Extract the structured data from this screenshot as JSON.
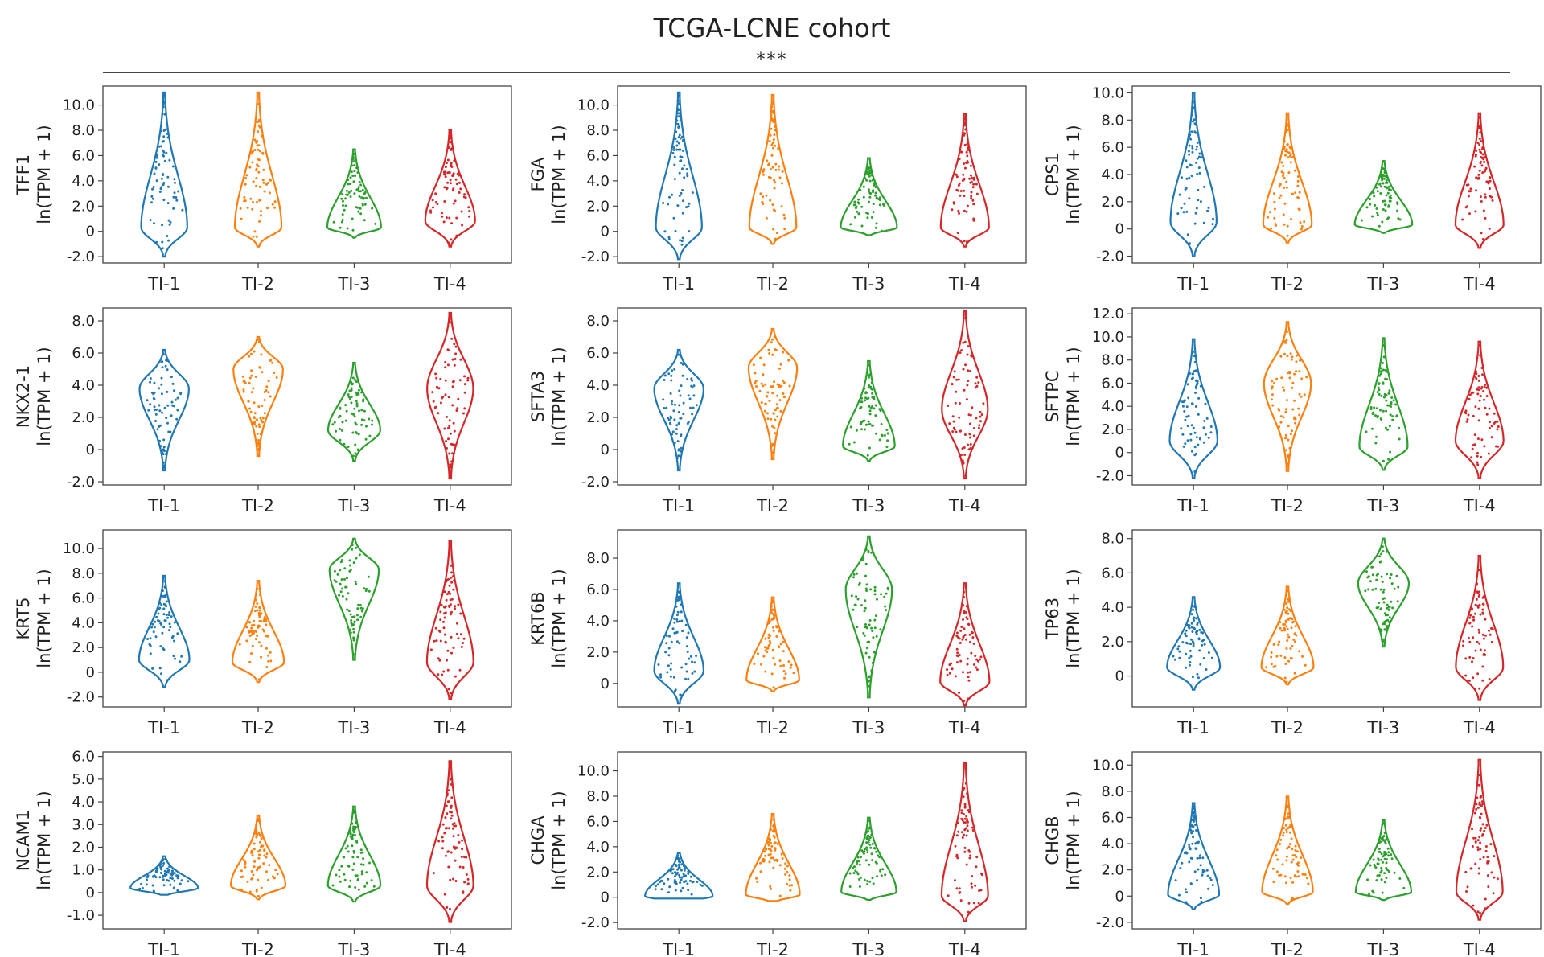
{
  "title": "TCGA-LCNE cohort",
  "significance": "***",
  "colors": {
    "TI-1": "#1f77b4",
    "TI-2": "#ff7f0e",
    "TI-3": "#2ca02c",
    "TI-4": "#d62728"
  },
  "chart_data": [
    {
      "type": "violin",
      "gene": "TFF1",
      "ylabel": "ln(TPM + 1)",
      "categories": [
        "TI-1",
        "TI-2",
        "TI-3",
        "TI-4"
      ],
      "yticks": [
        -2.0,
        0,
        2.0,
        4.0,
        6.0,
        8.0,
        10.0
      ],
      "ylim": [
        -2.5,
        11.5
      ],
      "series": [
        {
          "category": "TI-1",
          "min": -2.0,
          "max": 11.0,
          "mode": 0.3
        },
        {
          "category": "TI-2",
          "min": -1.2,
          "max": 11.0,
          "mode": 0.3
        },
        {
          "category": "TI-3",
          "min": -0.5,
          "max": 6.5,
          "mode": 0.3
        },
        {
          "category": "TI-4",
          "min": -1.2,
          "max": 8.0,
          "mode": 0.8
        }
      ]
    },
    {
      "type": "violin",
      "gene": "FGA",
      "ylabel": "ln(TPM + 1)",
      "categories": [
        "TI-1",
        "TI-2",
        "TI-3",
        "TI-4"
      ],
      "yticks": [
        -2.0,
        0,
        2.0,
        4.0,
        6.0,
        8.0,
        10.0
      ],
      "ylim": [
        -2.5,
        11.5
      ],
      "series": [
        {
          "category": "TI-1",
          "min": -2.2,
          "max": 11.0,
          "mode": 0.3
        },
        {
          "category": "TI-2",
          "min": -1.0,
          "max": 10.8,
          "mode": 0.3
        },
        {
          "category": "TI-3",
          "min": -0.3,
          "max": 5.8,
          "mode": 0.3
        },
        {
          "category": "TI-4",
          "min": -1.2,
          "max": 9.3,
          "mode": 0.3
        }
      ]
    },
    {
      "type": "violin",
      "gene": "CPS1",
      "ylabel": "ln(TPM + 1)",
      "categories": [
        "TI-1",
        "TI-2",
        "TI-3",
        "TI-4"
      ],
      "yticks": [
        -2.0,
        0,
        2.0,
        4.0,
        6.0,
        8.0,
        10.0
      ],
      "ylim": [
        -2.5,
        10.5
      ],
      "series": [
        {
          "category": "TI-1",
          "min": -2.0,
          "max": 10.0,
          "mode": 0.5
        },
        {
          "category": "TI-2",
          "min": -1.0,
          "max": 8.5,
          "mode": 0.3
        },
        {
          "category": "TI-3",
          "min": -0.3,
          "max": 5.0,
          "mode": 0.3
        },
        {
          "category": "TI-4",
          "min": -1.4,
          "max": 8.5,
          "mode": 0.3
        }
      ]
    },
    {
      "type": "violin",
      "gene": "NKX2-1",
      "ylabel": "ln(TPM + 1)",
      "categories": [
        "TI-1",
        "TI-2",
        "TI-3",
        "TI-4"
      ],
      "yticks": [
        -2.0,
        0,
        2.0,
        4.0,
        6.0,
        8.0
      ],
      "ylim": [
        -2.2,
        8.8
      ],
      "series": [
        {
          "category": "TI-1",
          "min": -1.3,
          "max": 6.2,
          "mode": 3.8
        },
        {
          "category": "TI-2",
          "min": -0.4,
          "max": 7.0,
          "mode": 5.0
        },
        {
          "category": "TI-3",
          "min": -0.7,
          "max": 5.4,
          "mode": 1.2
        },
        {
          "category": "TI-4",
          "min": -1.8,
          "max": 8.5,
          "mode": 3.8
        }
      ]
    },
    {
      "type": "violin",
      "gene": "SFTA3",
      "ylabel": "ln(TPM + 1)",
      "categories": [
        "TI-1",
        "TI-2",
        "TI-3",
        "TI-4"
      ],
      "yticks": [
        -2.0,
        0,
        2.0,
        4.0,
        6.0,
        8.0
      ],
      "ylim": [
        -2.2,
        8.8
      ],
      "series": [
        {
          "category": "TI-1",
          "min": -1.3,
          "max": 6.2,
          "mode": 3.8
        },
        {
          "category": "TI-2",
          "min": -0.6,
          "max": 7.5,
          "mode": 5.1
        },
        {
          "category": "TI-3",
          "min": -0.7,
          "max": 5.5,
          "mode": 0.2
        },
        {
          "category": "TI-4",
          "min": -1.8,
          "max": 8.6,
          "mode": 2.5
        }
      ]
    },
    {
      "type": "violin",
      "gene": "SFTPC",
      "ylabel": "ln(TPM + 1)",
      "categories": [
        "TI-1",
        "TI-2",
        "TI-3",
        "TI-4"
      ],
      "yticks": [
        -2.0,
        0,
        2.0,
        4.0,
        6.0,
        8.0,
        10.0,
        12.0
      ],
      "ylim": [
        -2.8,
        12.5
      ],
      "series": [
        {
          "category": "TI-1",
          "min": -2.2,
          "max": 9.8,
          "mode": 1.0
        },
        {
          "category": "TI-2",
          "min": -1.6,
          "max": 11.3,
          "mode": 6.0
        },
        {
          "category": "TI-3",
          "min": -1.5,
          "max": 9.9,
          "mode": 0.5
        },
        {
          "category": "TI-4",
          "min": -2.2,
          "max": 9.6,
          "mode": 1.0
        }
      ]
    },
    {
      "type": "violin",
      "gene": "KRT5",
      "ylabel": "ln(TPM + 1)",
      "categories": [
        "TI-1",
        "TI-2",
        "TI-3",
        "TI-4"
      ],
      "yticks": [
        -2.0,
        0,
        2.0,
        4.0,
        6.0,
        8.0,
        10.0
      ],
      "ylim": [
        -2.8,
        11.5
      ],
      "series": [
        {
          "category": "TI-1",
          "min": -1.2,
          "max": 7.8,
          "mode": 1.0
        },
        {
          "category": "TI-2",
          "min": -0.8,
          "max": 7.4,
          "mode": 0.8
        },
        {
          "category": "TI-3",
          "min": 1.0,
          "max": 10.8,
          "mode": 8.3
        },
        {
          "category": "TI-4",
          "min": -2.2,
          "max": 10.6,
          "mode": 0.8
        }
      ]
    },
    {
      "type": "violin",
      "gene": "KRT6B",
      "ylabel": "ln(TPM + 1)",
      "categories": [
        "TI-1",
        "TI-2",
        "TI-3",
        "TI-4"
      ],
      "yticks": [
        0,
        2.0,
        4.0,
        6.0,
        8.0
      ],
      "ylim": [
        -1.5,
        9.8
      ],
      "series": [
        {
          "category": "TI-1",
          "min": -1.3,
          "max": 6.4,
          "mode": 0.8
        },
        {
          "category": "TI-2",
          "min": -0.5,
          "max": 5.5,
          "mode": 0.2
        },
        {
          "category": "TI-3",
          "min": -0.9,
          "max": 9.4,
          "mode": 6.0
        },
        {
          "category": "TI-4",
          "min": -1.4,
          "max": 6.4,
          "mode": 0.1
        }
      ]
    },
    {
      "type": "violin",
      "gene": "TP63",
      "ylabel": "ln(TPM + 1)",
      "categories": [
        "TI-1",
        "TI-2",
        "TI-3",
        "TI-4"
      ],
      "yticks": [
        0,
        2.0,
        4.0,
        6.0,
        8.0
      ],
      "ylim": [
        -1.8,
        8.5
      ],
      "series": [
        {
          "category": "TI-1",
          "min": -0.8,
          "max": 4.6,
          "mode": 0.5
        },
        {
          "category": "TI-2",
          "min": -0.5,
          "max": 5.2,
          "mode": 0.5
        },
        {
          "category": "TI-3",
          "min": 1.7,
          "max": 8.0,
          "mode": 5.4
        },
        {
          "category": "TI-4",
          "min": -1.4,
          "max": 7.0,
          "mode": 0.5
        }
      ]
    },
    {
      "type": "violin",
      "gene": "NCAM1",
      "ylabel": "ln(TPM + 1)",
      "categories": [
        "TI-1",
        "TI-2",
        "TI-3",
        "TI-4"
      ],
      "yticks": [
        -1.0,
        0,
        1.0,
        2.0,
        3.0,
        4.0,
        5.0,
        6.0
      ],
      "ylim": [
        -1.6,
        6.2
      ],
      "series": [
        {
          "category": "TI-1",
          "min": -0.1,
          "max": 1.6,
          "mode": 0.2
        },
        {
          "category": "TI-2",
          "min": -0.3,
          "max": 3.4,
          "mode": 0.3
        },
        {
          "category": "TI-3",
          "min": -0.4,
          "max": 3.8,
          "mode": 0.3
        },
        {
          "category": "TI-4",
          "min": -1.3,
          "max": 5.8,
          "mode": 0.3
        }
      ]
    },
    {
      "type": "violin",
      "gene": "CHGA",
      "ylabel": "ln(TPM + 1)",
      "categories": [
        "TI-1",
        "TI-2",
        "TI-3",
        "TI-4"
      ],
      "yticks": [
        -2.0,
        0,
        2.0,
        4.0,
        6.0,
        8.0,
        10.0
      ],
      "ylim": [
        -2.5,
        11.5
      ],
      "series": [
        {
          "category": "TI-1",
          "min": -0.1,
          "max": 3.5,
          "mode": 0.1
        },
        {
          "category": "TI-2",
          "min": -0.3,
          "max": 6.6,
          "mode": 0.2
        },
        {
          "category": "TI-3",
          "min": -0.2,
          "max": 6.3,
          "mode": 0.4
        },
        {
          "category": "TI-4",
          "min": -1.9,
          "max": 10.6,
          "mode": 0.1
        }
      ]
    },
    {
      "type": "violin",
      "gene": "CHGB",
      "ylabel": "ln(TPM + 1)",
      "categories": [
        "TI-1",
        "TI-2",
        "TI-3",
        "TI-4"
      ],
      "yticks": [
        -2.0,
        0,
        2.0,
        4.0,
        6.0,
        8.0,
        10.0
      ],
      "ylim": [
        -2.5,
        11.0
      ],
      "series": [
        {
          "category": "TI-1",
          "min": -1.0,
          "max": 7.1,
          "mode": 0.1
        },
        {
          "category": "TI-2",
          "min": -0.6,
          "max": 7.6,
          "mode": 0.3
        },
        {
          "category": "TI-3",
          "min": -0.3,
          "max": 5.8,
          "mode": 0.3
        },
        {
          "category": "TI-4",
          "min": -1.8,
          "max": 10.4,
          "mode": 0.3
        }
      ]
    }
  ]
}
